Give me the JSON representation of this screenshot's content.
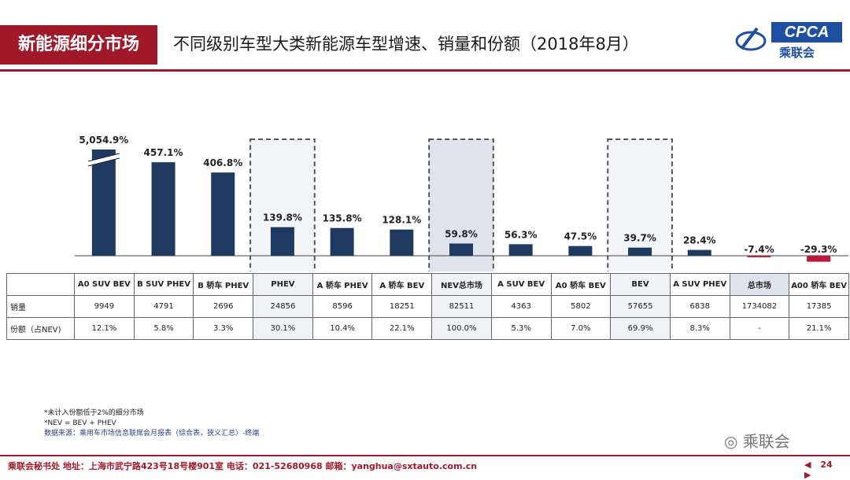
{
  "header": {
    "section_tag": "新能源细分市场",
    "title": "不同级别车型大类新能源车型增速、销量和份额（2018年8月）",
    "logo_text": "CPCA",
    "logo_cn": "乘联会"
  },
  "chart_data": {
    "type": "bar",
    "categories": [
      "A0 SUV BEV",
      "B SUV PHEV",
      "B 轿车 PHEV",
      "PHEV",
      "A 轿车 PHEV",
      "A 轿车 BEV",
      "NEV总市场",
      "A SUV BEV",
      "A0 轿车 BEV",
      "BEV",
      "A SUV PHEV",
      "总市场",
      "A00 轿车 BEV"
    ],
    "values": [
      5054.9,
      457.1,
      406.8,
      139.8,
      135.8,
      128.1,
      59.8,
      56.3,
      47.5,
      39.7,
      28.4,
      -7.4,
      -29.3
    ],
    "value_labels": [
      "5,054.9%",
      "457.1%",
      "406.8%",
      "139.8%",
      "135.8%",
      "128.1%",
      "59.8%",
      "56.3%",
      "47.5%",
      "39.7%",
      "28.4%",
      "-7.4%",
      "-29.3%"
    ],
    "axis_break_on_first_bar": true,
    "highlighted_categories": [
      "PHEV",
      "NEV总市场",
      "BEV"
    ],
    "colors": {
      "positive": "#1f3a60",
      "negative": "#c0163a",
      "highlight_box": "#555555"
    },
    "table": {
      "rows": [
        {
          "label": "销量",
          "values": [
            "9949",
            "4791",
            "2696",
            "24856",
            "8596",
            "18251",
            "82511",
            "4363",
            "5802",
            "57655",
            "6838",
            "1734082",
            "17385"
          ]
        },
        {
          "label": "份额（占NEV)",
          "values": [
            "12.1%",
            "5.8%",
            "3.3%",
            "30.1%",
            "10.4%",
            "22.1%",
            "100.0%",
            "5.3%",
            "7.0%",
            "69.9%",
            "8.3%",
            "-",
            "21.1%"
          ]
        }
      ]
    }
  },
  "notes": {
    "line1": "*未计入份额低于2%的细分市场",
    "line2": "*NEV = BEV + PHEV",
    "line3": "数据来源：乘用车市场信息联席会月报表（综合表，狭义汇总）-终端"
  },
  "watermark": "乘联会",
  "footer": {
    "text": "乘联会秘书处   地址：上海市武宁路423号18号楼901室   电话：021-52680968   邮箱：yanghua@sxtauto.com.cn",
    "page": "24"
  }
}
